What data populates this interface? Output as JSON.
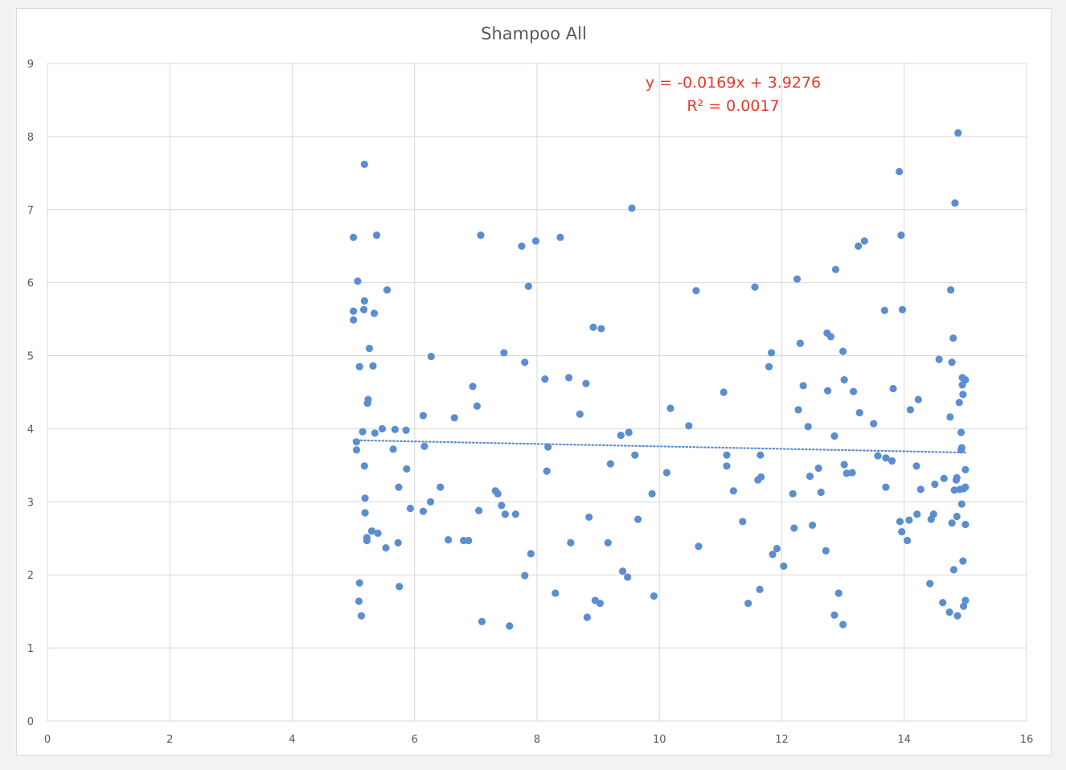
{
  "chart_data": {
    "type": "scatter",
    "title": "Shampoo All",
    "xlabel": "",
    "ylabel": "",
    "xlim": [
      0,
      16
    ],
    "ylim": [
      0,
      9
    ],
    "x_ticks": [
      "0",
      "2",
      "4",
      "6",
      "8",
      "10",
      "12",
      "14",
      "16"
    ],
    "y_ticks": [
      "0",
      "1",
      "2",
      "3",
      "4",
      "5",
      "6",
      "7",
      "8",
      "9"
    ],
    "grid": true,
    "legend": "none",
    "colors": {
      "points": "#5b8ecf",
      "trendline": "#5b8ecf",
      "equation": "#e8392b",
      "grid": "#d9d9d9",
      "text": "#595959"
    },
    "trendline": {
      "type": "linear",
      "slope": -0.0169,
      "intercept": 3.9276,
      "x_range": [
        5,
        15
      ],
      "equation_label": "y = -0.0169x + 3.9276",
      "r2_label": "R² = 0.0017"
    },
    "points": [
      [
        5.0,
        6.62
      ],
      [
        5.0,
        5.61
      ],
      [
        5.0,
        5.49
      ],
      [
        5.05,
        3.82
      ],
      [
        5.05,
        3.71
      ],
      [
        5.07,
        6.02
      ],
      [
        5.09,
        1.64
      ],
      [
        5.1,
        1.89
      ],
      [
        5.1,
        4.85
      ],
      [
        5.13,
        1.44
      ],
      [
        5.15,
        3.96
      ],
      [
        5.17,
        5.63
      ],
      [
        5.18,
        5.75
      ],
      [
        5.18,
        7.62
      ],
      [
        5.18,
        3.49
      ],
      [
        5.19,
        3.05
      ],
      [
        5.19,
        2.85
      ],
      [
        5.22,
        2.51
      ],
      [
        5.22,
        2.47
      ],
      [
        5.23,
        4.35
      ],
      [
        5.24,
        4.4
      ],
      [
        5.26,
        5.1
      ],
      [
        5.3,
        2.6
      ],
      [
        5.32,
        4.86
      ],
      [
        5.34,
        5.58
      ],
      [
        5.35,
        3.94
      ],
      [
        5.38,
        6.65
      ],
      [
        5.4,
        2.57
      ],
      [
        5.47,
        4.0
      ],
      [
        5.53,
        2.37
      ],
      [
        5.55,
        5.9
      ],
      [
        5.65,
        3.72
      ],
      [
        5.68,
        3.99
      ],
      [
        5.73,
        2.44
      ],
      [
        5.74,
        3.2
      ],
      [
        5.75,
        1.84
      ],
      [
        5.86,
        3.98
      ],
      [
        5.87,
        3.45
      ],
      [
        5.93,
        2.91
      ],
      [
        6.14,
        2.87
      ],
      [
        6.14,
        4.18
      ],
      [
        6.16,
        3.76
      ],
      [
        6.26,
        3.0
      ],
      [
        6.27,
        4.99
      ],
      [
        6.42,
        3.2
      ],
      [
        6.55,
        2.48
      ],
      [
        6.65,
        4.15
      ],
      [
        6.8,
        2.47
      ],
      [
        6.88,
        2.47
      ],
      [
        6.95,
        4.58
      ],
      [
        7.02,
        4.31
      ],
      [
        7.05,
        2.88
      ],
      [
        7.08,
        6.65
      ],
      [
        7.1,
        1.36
      ],
      [
        7.32,
        3.15
      ],
      [
        7.36,
        3.11
      ],
      [
        7.42,
        2.95
      ],
      [
        7.46,
        5.04
      ],
      [
        7.48,
        2.83
      ],
      [
        7.55,
        1.3
      ],
      [
        7.65,
        2.83
      ],
      [
        7.75,
        6.5
      ],
      [
        7.8,
        4.91
      ],
      [
        7.8,
        1.99
      ],
      [
        7.86,
        5.95
      ],
      [
        7.9,
        2.29
      ],
      [
        7.98,
        6.57
      ],
      [
        8.13,
        4.68
      ],
      [
        8.16,
        3.42
      ],
      [
        8.18,
        3.75
      ],
      [
        8.3,
        1.75
      ],
      [
        8.38,
        6.62
      ],
      [
        8.52,
        4.7
      ],
      [
        8.55,
        2.44
      ],
      [
        8.7,
        4.2
      ],
      [
        8.8,
        4.62
      ],
      [
        8.82,
        1.42
      ],
      [
        8.85,
        2.79
      ],
      [
        8.92,
        5.39
      ],
      [
        8.95,
        1.65
      ],
      [
        9.03,
        1.61
      ],
      [
        9.05,
        5.37
      ],
      [
        9.16,
        2.44
      ],
      [
        9.2,
        3.52
      ],
      [
        9.37,
        3.91
      ],
      [
        9.4,
        2.05
      ],
      [
        9.48,
        1.97
      ],
      [
        9.5,
        3.95
      ],
      [
        9.55,
        7.02
      ],
      [
        9.6,
        3.64
      ],
      [
        9.65,
        2.76
      ],
      [
        9.88,
        3.11
      ],
      [
        9.91,
        1.71
      ],
      [
        10.12,
        3.4
      ],
      [
        10.18,
        4.28
      ],
      [
        10.48,
        4.04
      ],
      [
        10.6,
        5.89
      ],
      [
        10.64,
        2.39
      ],
      [
        11.05,
        4.5
      ],
      [
        11.1,
        3.64
      ],
      [
        11.1,
        3.49
      ],
      [
        11.21,
        3.15
      ],
      [
        11.36,
        2.73
      ],
      [
        11.45,
        1.61
      ],
      [
        11.56,
        5.94
      ],
      [
        11.61,
        3.3
      ],
      [
        11.64,
        1.8
      ],
      [
        11.65,
        3.64
      ],
      [
        11.66,
        3.34
      ],
      [
        11.79,
        4.85
      ],
      [
        11.83,
        5.04
      ],
      [
        11.85,
        2.28
      ],
      [
        11.92,
        2.36
      ],
      [
        12.03,
        2.12
      ],
      [
        12.18,
        3.11
      ],
      [
        12.2,
        2.64
      ],
      [
        12.25,
        6.05
      ],
      [
        12.27,
        4.26
      ],
      [
        12.3,
        5.17
      ],
      [
        12.35,
        4.59
      ],
      [
        12.43,
        4.03
      ],
      [
        12.46,
        3.35
      ],
      [
        12.5,
        2.68
      ],
      [
        12.6,
        3.46
      ],
      [
        12.64,
        3.13
      ],
      [
        12.72,
        2.33
      ],
      [
        12.74,
        5.31
      ],
      [
        12.75,
        4.52
      ],
      [
        12.8,
        5.26
      ],
      [
        12.86,
        3.9
      ],
      [
        12.86,
        1.45
      ],
      [
        12.88,
        6.18
      ],
      [
        12.93,
        1.75
      ],
      [
        13.0,
        1.32
      ],
      [
        13.0,
        5.06
      ],
      [
        13.02,
        4.67
      ],
      [
        13.02,
        3.51
      ],
      [
        13.06,
        3.39
      ],
      [
        13.15,
        3.4
      ],
      [
        13.17,
        4.51
      ],
      [
        13.25,
        6.5
      ],
      [
        13.27,
        4.22
      ],
      [
        13.35,
        6.57
      ],
      [
        13.5,
        4.07
      ],
      [
        13.57,
        3.63
      ],
      [
        13.68,
        5.62
      ],
      [
        13.7,
        3.2
      ],
      [
        13.7,
        3.6
      ],
      [
        13.8,
        3.56
      ],
      [
        13.82,
        4.55
      ],
      [
        13.92,
        7.52
      ],
      [
        13.93,
        2.73
      ],
      [
        13.95,
        6.65
      ],
      [
        13.96,
        2.59
      ],
      [
        13.97,
        5.63
      ],
      [
        14.05,
        2.47
      ],
      [
        14.08,
        2.75
      ],
      [
        14.1,
        4.26
      ],
      [
        14.2,
        3.49
      ],
      [
        14.21,
        2.83
      ],
      [
        14.23,
        4.4
      ],
      [
        14.27,
        3.17
      ],
      [
        14.42,
        1.88
      ],
      [
        14.44,
        2.76
      ],
      [
        14.48,
        2.83
      ],
      [
        14.5,
        3.24
      ],
      [
        14.57,
        4.95
      ],
      [
        14.63,
        1.62
      ],
      [
        14.65,
        3.32
      ],
      [
        14.74,
        1.49
      ],
      [
        14.75,
        4.16
      ],
      [
        14.76,
        5.9
      ],
      [
        14.78,
        2.71
      ],
      [
        14.78,
        4.91
      ],
      [
        14.8,
        5.24
      ],
      [
        14.81,
        2.07
      ],
      [
        14.82,
        3.16
      ],
      [
        14.83,
        7.09
      ],
      [
        14.85,
        3.3
      ],
      [
        14.86,
        3.33
      ],
      [
        14.86,
        2.8
      ],
      [
        14.87,
        1.44
      ],
      [
        14.88,
        8.05
      ],
      [
        14.9,
        4.36
      ],
      [
        14.91,
        3.17
      ],
      [
        14.93,
        3.95
      ],
      [
        14.93,
        3.71
      ],
      [
        14.94,
        3.74
      ],
      [
        14.94,
        2.97
      ],
      [
        14.95,
        4.7
      ],
      [
        14.95,
        4.6
      ],
      [
        14.96,
        4.47
      ],
      [
        14.96,
        2.19
      ],
      [
        14.97,
        1.57
      ],
      [
        14.97,
        3.18
      ],
      [
        15.0,
        1.65
      ],
      [
        15.0,
        3.44
      ],
      [
        15.0,
        2.69
      ],
      [
        15.0,
        4.67
      ],
      [
        15.0,
        3.2
      ]
    ]
  }
}
